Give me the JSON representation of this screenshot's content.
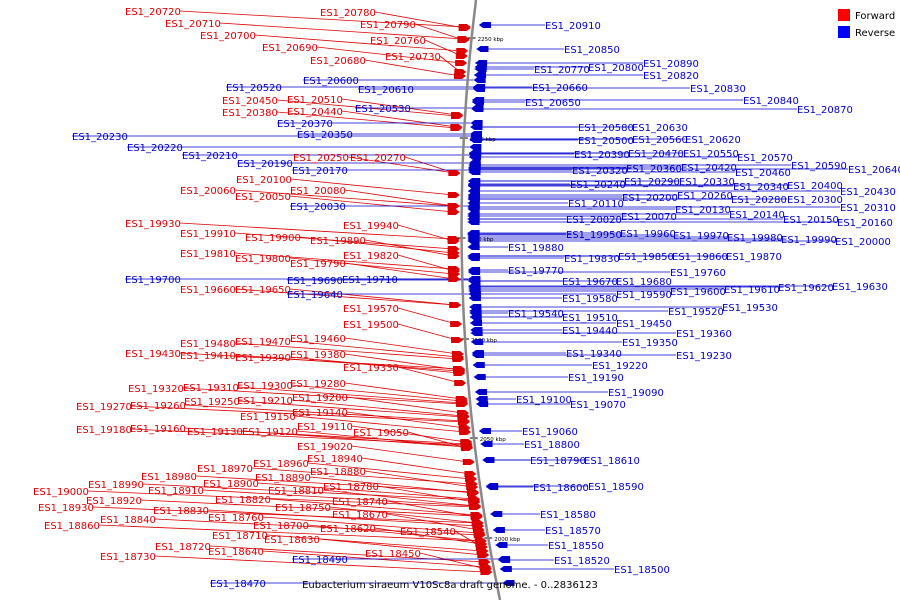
{
  "caption": "Eubacterium siraeum V10Sc8a draft genome. - 0..2836123",
  "legend": [
    {
      "label": "Forward",
      "color": "#ff0000"
    },
    {
      "label": "Reverse",
      "color": "#0000ff"
    }
  ],
  "colors": {
    "forward": "#dd0000",
    "reverse": "#0000cc",
    "axis": "#888888"
  },
  "scale_ticks": [
    "2250 kbp",
    "2200 kbp",
    "2150 kbp",
    "2100 kbp",
    "2050 kbp",
    "2000 kbp"
  ],
  "forward_genes": [
    "ES1_20780",
    "ES1_20720",
    "ES1_20710",
    "ES1_20790",
    "ES1_20700",
    "ES1_20760",
    "ES1_20690",
    "ES1_20730",
    "ES1_20680",
    "ES1_20450",
    "ES1_20510",
    "ES1_20380",
    "ES1_20440",
    "ES1_20250",
    "ES1_20270",
    "ES1_20100",
    "ES1_20060",
    "ES1_20080",
    "ES1_20050",
    "ES1_19930",
    "ES1_19940",
    "ES1_19910",
    "ES1_19900",
    "ES1_19890",
    "ES1_19810",
    "ES1_19820",
    "ES1_19800",
    "ES1_19790",
    "ES1_19660",
    "ES1_19650",
    "ES1_19570",
    "ES1_19500",
    "ES1_19480",
    "ES1_19470",
    "ES1_19460",
    "ES1_19430",
    "ES1_19410",
    "ES1_19390",
    "ES1_19380",
    "ES1_19330",
    "ES1_19320",
    "ES1_19310",
    "ES1_19300",
    "ES1_19280",
    "ES1_19270",
    "ES1_19260",
    "ES1_19250",
    "ES1_19210",
    "ES1_19200",
    "ES1_19150",
    "ES1_19140",
    "ES1_19180",
    "ES1_19160",
    "ES1_19130",
    "ES1_19120",
    "ES1_19110",
    "ES1_19050",
    "ES1_19020",
    "ES1_18940",
    "ES1_18960",
    "ES1_18980",
    "ES1_18970",
    "ES1_18880",
    "ES1_18990",
    "ES1_18890",
    "ES1_19000",
    "ES1_18900",
    "ES1_18780",
    "ES1_18810",
    "ES1_18920",
    "ES1_18910",
    "ES1_18820",
    "ES1_18930",
    "ES1_18830",
    "ES1_18750",
    "ES1_18740",
    "ES1_18840",
    "ES1_18860",
    "ES1_18760",
    "ES1_18670",
    "ES1_18700",
    "ES1_18620",
    "ES1_18540",
    "ES1_18710",
    "ES1_18630",
    "ES1_18720",
    "ES1_18640",
    "ES1_18730",
    "ES1_18450"
  ],
  "reverse_genes": [
    "ES1_20910",
    "ES1_20850",
    "ES1_20770",
    "ES1_20800",
    "ES1_20890",
    "ES1_20820",
    "ES1_20830",
    "ES1_20840",
    "ES1_20870",
    "ES1_20600",
    "ES1_20520",
    "ES1_20610",
    "ES1_20660",
    "ES1_20650",
    "ES1_20370",
    "ES1_20530",
    "ES1_20350",
    "ES1_20580",
    "ES1_20630",
    "ES1_20230",
    "ES1_20500",
    "ES1_20560",
    "ES1_20620",
    "ES1_20220",
    "ES1_20390",
    "ES1_20470",
    "ES1_20550",
    "ES1_20210",
    "ES1_20570",
    "ES1_20190",
    "ES1_20590",
    "ES1_20170",
    "ES1_20320",
    "ES1_20360",
    "ES1_20420",
    "ES1_20640",
    "ES1_20460",
    "ES1_20240",
    "ES1_20290",
    "ES1_20330",
    "ES1_20340",
    "ES1_20400",
    "ES1_20430",
    "ES1_20110",
    "ES1_20200",
    "ES1_20260",
    "ES1_20280",
    "ES1_20300",
    "ES1_20030",
    "ES1_20130",
    "ES1_20310",
    "ES1_20020",
    "ES1_20070",
    "ES1_20140",
    "ES1_20150",
    "ES1_20160",
    "ES1_19950",
    "ES1_19960",
    "ES1_19970",
    "ES1_19980",
    "ES1_19990",
    "ES1_20000",
    "ES1_19880",
    "ES1_19830",
    "ES1_19850",
    "ES1_19860",
    "ES1_19870",
    "ES1_19770",
    "ES1_19760",
    "ES1_19700",
    "ES1_19690",
    "ES1_19710",
    "ES1_19670",
    "ES1_19680",
    "ES1_19640",
    "ES1_19590",
    "ES1_19600",
    "ES1_19610",
    "ES1_19620",
    "ES1_19630",
    "ES1_19580",
    "ES1_19530",
    "ES1_19540",
    "ES1_19510",
    "ES1_19520",
    "ES1_19450",
    "ES1_19440",
    "ES1_19360",
    "ES1_19350",
    "ES1_19340",
    "ES1_19230",
    "ES1_19220",
    "ES1_19190",
    "ES1_19090",
    "ES1_19100",
    "ES1_19070",
    "ES1_19060",
    "ES1_18800",
    "ES1_18790",
    "ES1_18610",
    "ES1_18600",
    "ES1_18590",
    "ES1_18580",
    "ES1_18570",
    "ES1_18550",
    "ES1_18520",
    "ES1_18500",
    "ES1_18490",
    "ES1_18470"
  ]
}
